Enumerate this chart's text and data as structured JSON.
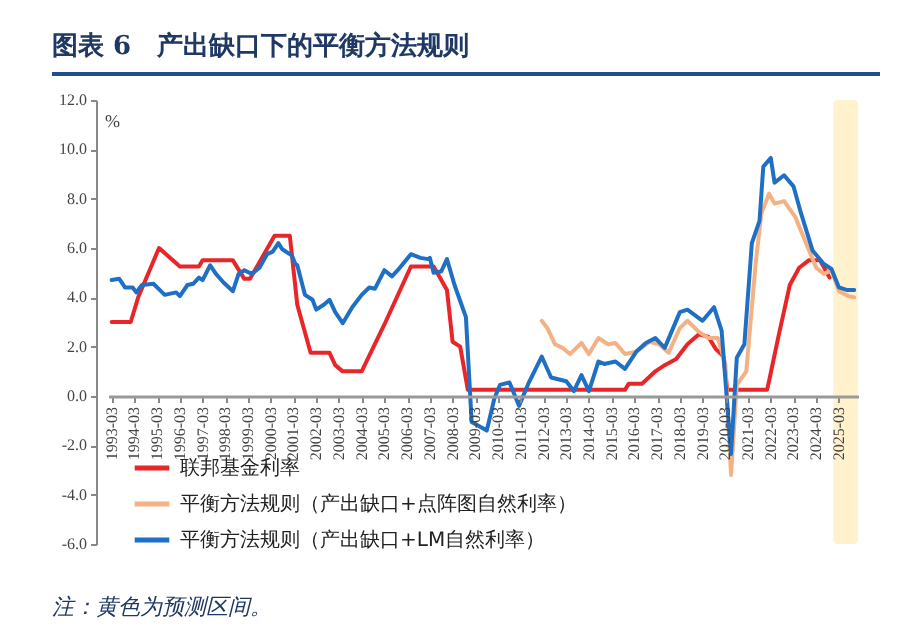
{
  "chart_data": {
    "type": "line",
    "title": "图表 6　产出缺口下的平衡方法规则",
    "ylabel": "%",
    "annotations": [
      "注：黄色为预测区间。"
    ],
    "xlim": [
      "1993-01",
      "2026-01"
    ],
    "xticks": [
      "1993-03",
      "1994-03",
      "1995-03",
      "1996-03",
      "1997-03",
      "1998-03",
      "1999-03",
      "2000-03",
      "2001-03",
      "2002-03",
      "2003-03",
      "2004-03",
      "2005-03",
      "2006-03",
      "2007-03",
      "2008-03",
      "2009-03",
      "2010-03",
      "2011-03",
      "2012-03",
      "2013-03",
      "2014-03",
      "2015-03",
      "2016-03",
      "2017-03",
      "2018-03",
      "2019-03",
      "2020-03",
      "2021-03",
      "2022-03",
      "2023-03",
      "2024-03",
      "2025-03"
    ],
    "ylim": [
      -6,
      12
    ],
    "yticks": [
      {
        "value": -6,
        "label": "-6.0"
      },
      {
        "value": -4,
        "label": "-4.0"
      },
      {
        "value": -2,
        "label": "-2.0"
      },
      {
        "value": 0,
        "label": "0.0"
      },
      {
        "value": 2,
        "label": "2.0"
      },
      {
        "value": 4,
        "label": "4.0"
      },
      {
        "value": 6,
        "label": "6.0"
      },
      {
        "value": 8,
        "label": "8.0"
      },
      {
        "value": 10,
        "label": "10.0"
      },
      {
        "value": 12,
        "label": "12.0"
      }
    ],
    "legend": "bottom left",
    "bands": [
      {
        "axis": "x",
        "from": "2024-12",
        "to": "2026-01",
        "color": "#fff2cc"
      }
    ],
    "series": [
      {
        "name": "联邦基金利率",
        "color": "#e8262a",
        "x": [
          "1993-03",
          "1994-01",
          "1994-05",
          "1995-04",
          "1996-03",
          "1997-01",
          "1997-03",
          "1998-07",
          "1999-01",
          "1999-04",
          "2000-05",
          "2001-01",
          "2001-05",
          "2001-12",
          "2002-10",
          "2003-01",
          "2003-05",
          "2004-03",
          "2005-03",
          "2006-05",
          "2007-05",
          "2007-12",
          "2008-03",
          "2008-07",
          "2008-11",
          "2015-10",
          "2015-12",
          "2016-07",
          "2017-02",
          "2017-07",
          "2018-01",
          "2018-07",
          "2019-01",
          "2019-06",
          "2019-10",
          "2020-02",
          "2020-04",
          "2022-01",
          "2022-02",
          "2022-07",
          "2023-01",
          "2023-06",
          "2023-11",
          "2024-05",
          "2024-10"
        ],
        "values": [
          3.0,
          3.0,
          4.0,
          6.0,
          5.25,
          5.25,
          5.5,
          5.5,
          4.75,
          4.75,
          6.5,
          6.5,
          3.7,
          1.75,
          1.75,
          1.25,
          1.0,
          1.0,
          2.9,
          5.25,
          5.25,
          4.3,
          2.2,
          2.0,
          0.25,
          0.25,
          0.5,
          0.5,
          1.0,
          1.25,
          1.5,
          2.1,
          2.5,
          2.4,
          1.9,
          1.6,
          0.25,
          0.25,
          0.6,
          2.4,
          4.5,
          5.2,
          5.5,
          5.5,
          4.8
        ]
      },
      {
        "name": "平衡方法规则（产出缺口+点阵图自然利率）",
        "color": "#f4b183",
        "x": [
          "2012-02",
          "2012-05",
          "2012-09",
          "2013-01",
          "2013-05",
          "2013-11",
          "2014-03",
          "2014-08",
          "2015-01",
          "2015-05",
          "2015-10",
          "2016-04",
          "2016-11",
          "2017-04",
          "2017-09",
          "2018-03",
          "2018-07",
          "2019-01",
          "2019-06",
          "2019-11",
          "2020-03",
          "2020-06",
          "2020-09",
          "2021-02",
          "2021-07",
          "2021-10",
          "2022-02",
          "2022-05",
          "2022-10",
          "2023-04",
          "2023-09",
          "2024-03",
          "2024-07",
          "2024-11",
          "2025-03",
          "2025-08",
          "2025-11"
        ],
        "values": [
          3.05,
          2.75,
          2.1,
          1.95,
          1.7,
          2.15,
          1.7,
          2.35,
          2.1,
          2.15,
          1.7,
          1.8,
          2.2,
          2.1,
          1.75,
          2.75,
          3.05,
          2.6,
          2.35,
          2.35,
          1.3,
          -3.2,
          0.45,
          1.0,
          5.35,
          7.4,
          8.2,
          7.8,
          7.9,
          7.25,
          6.3,
          5.2,
          4.95,
          5.1,
          4.25,
          4.05,
          4.0
        ]
      },
      {
        "name": "平衡方法规则（产出缺口+LM自然利率）",
        "color": "#1f6fc5",
        "x": [
          "1993-03",
          "1993-07",
          "1993-10",
          "1994-02",
          "1994-04",
          "1994-07",
          "1995-01",
          "1995-03",
          "1995-07",
          "1996-01",
          "1996-03",
          "1996-07",
          "1996-10",
          "1997-01",
          "1997-03",
          "1997-07",
          "1997-10",
          "1998-02",
          "1998-07",
          "1998-10",
          "1999-01",
          "1999-05",
          "1999-09",
          "2000-01",
          "2000-04",
          "2000-07",
          "2000-09",
          "2001-02",
          "2001-04",
          "2001-05",
          "2001-09",
          "2002-01",
          "2002-03",
          "2002-07",
          "2002-10",
          "2003-01",
          "2003-05",
          "2003-10",
          "2004-03",
          "2004-07",
          "2004-10",
          "2005-03",
          "2005-07",
          "2005-10",
          "2006-05",
          "2006-10",
          "2007-02",
          "2007-03",
          "2007-05",
          "2007-09",
          "2007-12",
          "2008-04",
          "2008-07",
          "2008-10",
          "2009-01",
          "2009-09",
          "2010-01",
          "2010-04",
          "2010-09",
          "2011-02",
          "2011-07",
          "2012-02",
          "2012-07",
          "2013-03",
          "2013-07",
          "2013-11",
          "2014-03",
          "2014-08",
          "2014-11",
          "2015-05",
          "2015-10",
          "2016-04",
          "2016-09",
          "2017-02",
          "2017-07",
          "2018-03",
          "2018-07",
          "2019-03",
          "2019-09",
          "2020-01",
          "2020-06",
          "2020-09",
          "2021-01",
          "2021-05",
          "2021-09",
          "2021-11",
          "2022-03",
          "2022-05",
          "2022-10",
          "2023-03",
          "2023-07",
          "2024-01",
          "2024-07",
          "2024-11",
          "2025-03",
          "2025-07",
          "2025-11"
        ],
        "values": [
          4.7,
          4.75,
          4.4,
          4.4,
          4.2,
          4.5,
          4.55,
          4.4,
          4.1,
          4.2,
          4.05,
          4.5,
          4.55,
          4.8,
          4.7,
          5.3,
          4.95,
          4.6,
          4.25,
          4.95,
          5.1,
          4.95,
          5.2,
          5.75,
          5.85,
          6.2,
          5.95,
          5.7,
          5.35,
          5.3,
          4.1,
          3.9,
          3.5,
          3.7,
          3.9,
          3.4,
          2.95,
          3.6,
          4.1,
          4.4,
          4.35,
          5.1,
          4.85,
          5.1,
          5.75,
          5.6,
          5.55,
          5.6,
          5.0,
          5.05,
          5.55,
          4.5,
          3.85,
          3.2,
          -1.05,
          -1.4,
          -0.1,
          0.45,
          0.55,
          -0.4,
          0.5,
          1.6,
          0.75,
          0.6,
          0.2,
          0.85,
          0.2,
          1.4,
          1.3,
          1.4,
          1.1,
          1.8,
          2.15,
          2.35,
          1.95,
          3.4,
          3.5,
          3.05,
          3.6,
          2.65,
          -2.35,
          1.55,
          2.1,
          6.2,
          7.1,
          9.3,
          9.65,
          8.65,
          8.95,
          8.5,
          7.4,
          5.9,
          5.35,
          5.15,
          4.4,
          4.3,
          4.3
        ]
      }
    ]
  }
}
